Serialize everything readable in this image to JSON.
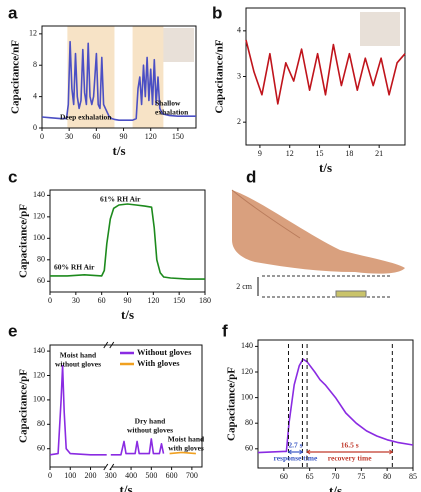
{
  "chart_data": [
    {
      "type": "line",
      "label": "a",
      "ylabel": "Capacitance/nF",
      "xlabel": "t/s",
      "xlim": [
        0,
        170
      ],
      "ylim": [
        0,
        13
      ],
      "xticks": [
        0,
        30,
        60,
        90,
        120,
        150
      ],
      "yticks": [
        0,
        4,
        8,
        12
      ],
      "color": "#4b4fc4",
      "shaded": [
        [
          28,
          80
        ],
        [
          100,
          134
        ]
      ],
      "annotations": [
        [
          "Deep exhalation"
        ],
        [
          "Shallow",
          "exhalation"
        ]
      ],
      "x": [
        0,
        10,
        20,
        27,
        29,
        31,
        33,
        35,
        37,
        39,
        41,
        43,
        45,
        47,
        49,
        51,
        53,
        55,
        57,
        60,
        62,
        64,
        66,
        68,
        70,
        72,
        74,
        77,
        80,
        85,
        90,
        95,
        100,
        104,
        106,
        108,
        110,
        112,
        114,
        116,
        118,
        120,
        122,
        124,
        126,
        128,
        130,
        133,
        140,
        150,
        160,
        170
      ],
      "values": [
        1.4,
        1.3,
        1.2,
        1.2,
        3,
        11,
        5,
        3,
        9.5,
        4,
        2.5,
        3.5,
        10,
        4.5,
        3,
        10.8,
        4,
        3,
        4,
        9.5,
        3,
        2.5,
        9,
        3,
        2.5,
        2,
        1.5,
        1.2,
        1.1,
        1,
        1,
        1,
        1,
        1.2,
        5,
        6.5,
        3,
        8,
        4,
        9,
        3.5,
        7.5,
        3,
        8.7,
        3,
        6.5,
        2.5,
        1.8,
        1.6,
        1.5,
        1.5,
        1.5
      ]
    },
    {
      "type": "line",
      "label": "b",
      "ylabel": "Capacitance/nF",
      "xlabel": "t/s",
      "xlim": [
        7.6,
        23.6
      ],
      "ylim": [
        1.5,
        4.5
      ],
      "xticks": [
        9,
        12,
        15,
        18,
        21
      ],
      "yticks": [
        2,
        3,
        4
      ],
      "color": "#c0141c",
      "annotations": [],
      "x": [
        7.6,
        8.4,
        9.2,
        10,
        10.8,
        11.6,
        12.4,
        13.2,
        14,
        14.8,
        15.6,
        16.4,
        17.2,
        18,
        18.8,
        19.6,
        20.4,
        21.2,
        22,
        22.8,
        23.6
      ],
      "values": [
        3.8,
        3.1,
        2.6,
        3.5,
        2.4,
        3.3,
        2.9,
        3.6,
        2.7,
        3.5,
        2.6,
        3.7,
        2.8,
        3.5,
        2.7,
        3.4,
        2.8,
        3.4,
        2.6,
        3.3,
        3.5
      ]
    },
    {
      "type": "line",
      "label": "c",
      "ylabel": "Capacitance/pF",
      "xlabel": "t/s",
      "xlim": [
        0,
        180
      ],
      "ylim": [
        50,
        145
      ],
      "xticks": [
        0,
        30,
        60,
        90,
        120,
        150,
        180
      ],
      "yticks": [
        60,
        80,
        100,
        120,
        140
      ],
      "color": "#1d8a1d",
      "annotations": [
        [
          "60% RH  Air"
        ],
        [
          "61% RH  Air"
        ]
      ],
      "x": [
        0,
        20,
        40,
        60,
        63,
        66,
        70,
        74,
        80,
        90,
        100,
        110,
        118,
        121,
        124,
        128,
        132,
        140,
        160,
        180
      ],
      "values": [
        65,
        65,
        66,
        65,
        70,
        95,
        118,
        128,
        131,
        132,
        131,
        130,
        129,
        110,
        80,
        68,
        64,
        63,
        62,
        62
      ]
    },
    {
      "type": "line",
      "label": "e",
      "ylabel": "Capacitance/pF",
      "xlabel": "t/s",
      "xlim": [
        0,
        750
      ],
      "ylim": [
        45,
        145
      ],
      "xticks": [
        0,
        100,
        200,
        300,
        400,
        500,
        600,
        700
      ],
      "yticks": [
        60,
        80,
        100,
        120,
        140
      ],
      "axis_break": 290,
      "legend": "upper right",
      "annotations": [
        [
          "Moist hand",
          "without gloves"
        ],
        [
          "Dry hand",
          "without gloves"
        ],
        [
          "Moist hand",
          "with gloves"
        ]
      ],
      "series": [
        {
          "name": "Without gloves",
          "color": "#8a2be2",
          "x": [
            0,
            40,
            55,
            62,
            70,
            80,
            100,
            200,
            280,
            290,
            300,
            350,
            365,
            375,
            420,
            430,
            440,
            490,
            500,
            510,
            540,
            550,
            560
          ],
          "values": [
            55,
            56,
            100,
            128,
            90,
            60,
            56,
            55,
            55,
            null,
            55,
            55,
            66,
            56,
            56,
            66,
            56,
            56,
            68,
            56,
            56,
            64,
            56
          ]
        },
        {
          "name": "With gloves",
          "color": "#f0a020",
          "x": [
            590,
            650,
            720
          ],
          "values": [
            56,
            57,
            56
          ]
        }
      ]
    },
    {
      "type": "line",
      "label": "f",
      "ylabel": "Capacitance/pF",
      "xlabel": "t/s",
      "xlim": [
        55,
        85
      ],
      "ylim": [
        45,
        145
      ],
      "xticks": [
        60,
        65,
        70,
        75,
        80,
        85
      ],
      "yticks": [
        60,
        80,
        100,
        120,
        140
      ],
      "color": "#8a2be2",
      "annotations": [],
      "intervals": [
        {
          "label": "2.7 s",
          "caption": "response time",
          "from": 60.9,
          "to": 63.6,
          "color": "#3a57c4"
        },
        {
          "label": "16.5 s",
          "caption": "recovery time",
          "from": 64.5,
          "to": 81,
          "color": "#c0392b"
        }
      ],
      "x": [
        55,
        60,
        60.5,
        61,
        62,
        63,
        63.7,
        64.5,
        66,
        67,
        68,
        70,
        72,
        74,
        76,
        78,
        80,
        82,
        85
      ],
      "values": [
        57,
        58,
        58,
        80,
        110,
        125,
        130,
        128,
        120,
        114,
        110,
        100,
        88,
        80,
        74,
        70,
        67,
        65,
        63
      ]
    }
  ],
  "panel_d": {
    "label": "d",
    "annotation": "2 cm"
  }
}
